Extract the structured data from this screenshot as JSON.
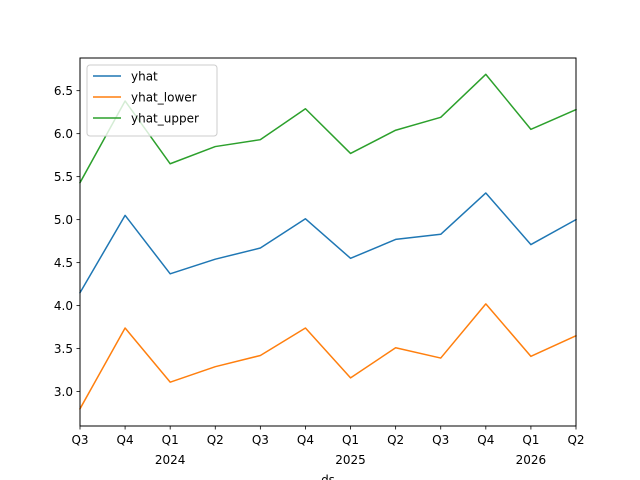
{
  "chart_data": {
    "type": "line",
    "title": "",
    "xlabel": "ds",
    "ylabel": "",
    "x": [
      "2023-Q3",
      "2023-Q4",
      "2024-Q1",
      "2024-Q2",
      "2024-Q3",
      "2024-Q4",
      "2025-Q1",
      "2025-Q2",
      "2025-Q3",
      "2025-Q4",
      "2026-Q1",
      "2026-Q2"
    ],
    "x_tick_labels": [
      "Q3",
      "Q4",
      "Q1",
      "Q2",
      "Q3",
      "Q4",
      "Q1",
      "Q2",
      "Q3",
      "Q4",
      "Q1",
      "Q2"
    ],
    "x_year_labels": [
      {
        "index": 2,
        "label": "2024"
      },
      {
        "index": 6,
        "label": "2025"
      },
      {
        "index": 10,
        "label": "2026"
      }
    ],
    "y_ticks": [
      "3.0",
      "3.5",
      "4.0",
      "4.5",
      "5.0",
      "5.5",
      "6.0",
      "6.5"
    ],
    "ylim": [
      2.6,
      6.88
    ],
    "grid": false,
    "legend_position": "top-left",
    "series": [
      {
        "name": "yhat",
        "color": "#1f77b4",
        "values": [
          4.15,
          5.05,
          4.37,
          4.54,
          4.67,
          5.01,
          4.55,
          4.77,
          4.83,
          5.31,
          4.71,
          5.0
        ]
      },
      {
        "name": "yhat_lower",
        "color": "#ff7f0e",
        "values": [
          2.8,
          3.74,
          3.11,
          3.29,
          3.42,
          3.74,
          3.16,
          3.51,
          3.39,
          4.02,
          3.41,
          3.65
        ]
      },
      {
        "name": "yhat_upper",
        "color": "#2ca02c",
        "values": [
          5.43,
          6.38,
          5.65,
          5.85,
          5.93,
          6.29,
          5.77,
          6.04,
          6.19,
          6.69,
          6.05,
          6.28
        ]
      }
    ]
  }
}
